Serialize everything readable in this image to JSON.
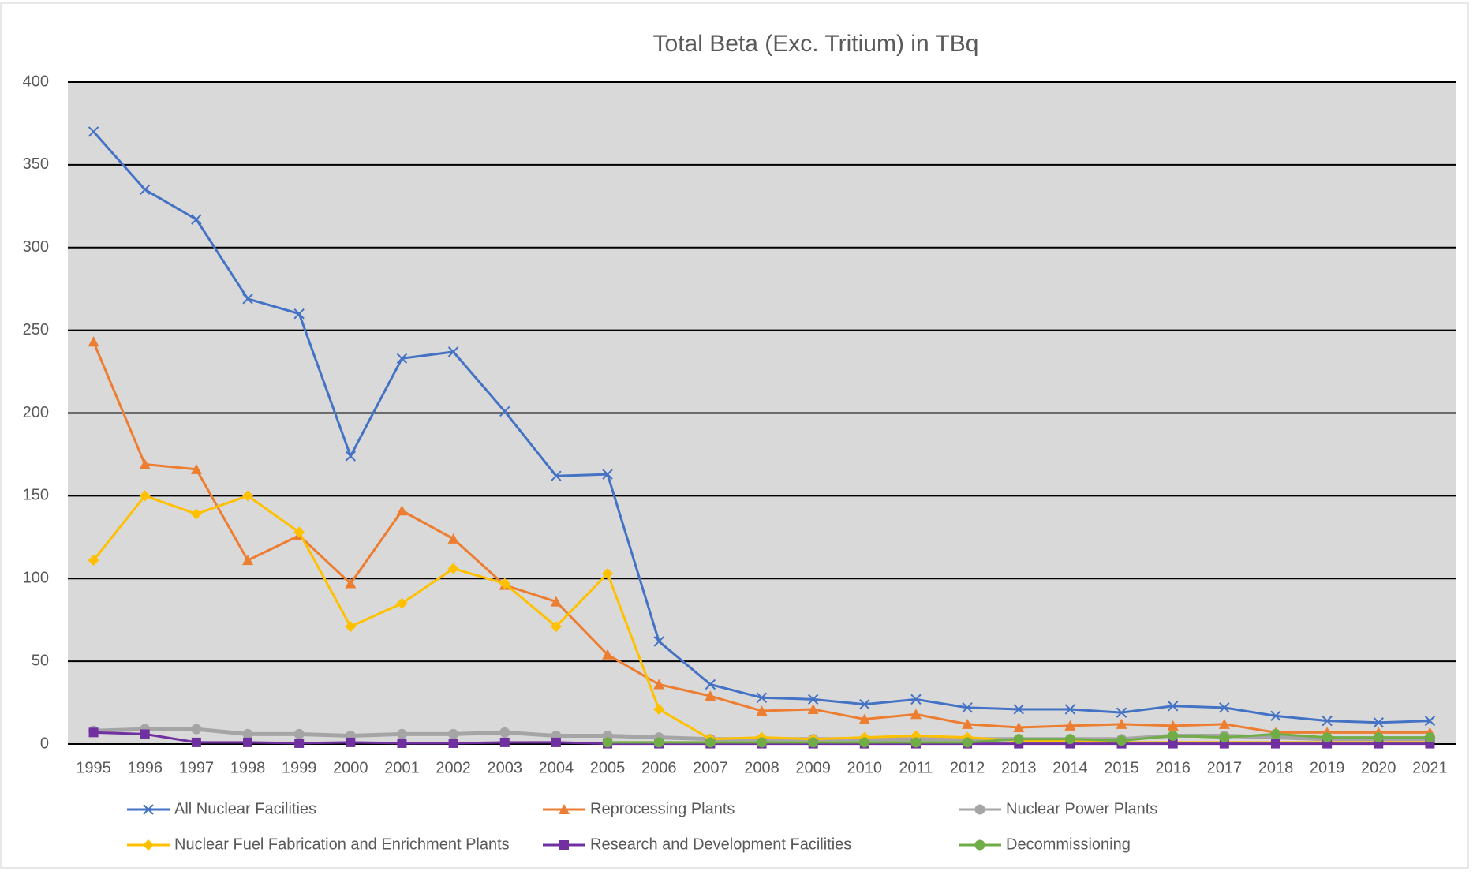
{
  "chart_data": {
    "type": "line",
    "title": "Total Beta (Exc. Tritium) in TBq",
    "categories": [
      "1995",
      "1996",
      "1997",
      "1998",
      "1999",
      "2000",
      "2001",
      "2002",
      "2003",
      "2004",
      "2005",
      "2006",
      "2007",
      "2008",
      "2009",
      "2010",
      "2011",
      "2012",
      "2013",
      "2014",
      "2015",
      "2016",
      "2017",
      "2018",
      "2019",
      "2020",
      "2021"
    ],
    "ylim": [
      0,
      400
    ],
    "yticks": [
      0,
      50,
      100,
      150,
      200,
      250,
      300,
      350,
      400
    ],
    "grid": true,
    "legend": "bottom",
    "series": [
      {
        "name": "All Nuclear Facilities",
        "color": "#4472c4",
        "marker": "x",
        "values": [
          370,
          335,
          317,
          269,
          260,
          174,
          233,
          237,
          201,
          162,
          163,
          62,
          36,
          28,
          27,
          24,
          27,
          22,
          21,
          21,
          19,
          23,
          22,
          17,
          14,
          13,
          14
        ]
      },
      {
        "name": "Reprocessing Plants",
        "color": "#ed7d31",
        "marker": "triangle",
        "values": [
          243,
          169,
          166,
          111,
          126,
          97,
          141,
          124,
          96,
          86,
          54,
          36,
          29,
          20,
          21,
          15,
          18,
          12,
          10,
          11,
          12,
          11,
          12,
          7,
          7,
          7,
          7
        ]
      },
      {
        "name": "Nuclear Power Plants",
        "color": "#a5a5a5",
        "marker": "circle",
        "values": [
          8,
          9,
          9,
          6,
          6,
          5,
          6,
          6,
          7,
          5,
          5,
          4,
          3,
          3,
          3,
          3,
          3,
          3,
          3,
          3,
          3,
          5,
          5,
          4,
          3,
          3,
          3
        ]
      },
      {
        "name": "Nuclear Fuel Fabrication and Enrichment Plants",
        "color": "#ffc000",
        "marker": "diamond",
        "values": [
          111,
          150,
          139,
          150,
          128,
          71,
          85,
          106,
          97,
          71,
          103,
          21,
          3,
          4,
          3,
          4,
          5,
          4,
          2,
          2,
          1,
          1,
          1,
          1,
          1,
          1,
          1
        ]
      },
      {
        "name": "Research and Development Facilities",
        "color": "#7030a0",
        "marker": "square",
        "values": [
          7,
          6,
          1,
          1,
          0.5,
          1,
          0.5,
          0.5,
          1,
          1,
          0.2,
          0.2,
          0.2,
          0.2,
          0.2,
          0.2,
          0.2,
          0.2,
          0.2,
          0.2,
          0.2,
          0.2,
          0.2,
          0.2,
          0.2,
          0.2,
          0.2
        ]
      },
      {
        "name": "Decommissioning",
        "color": "#70ad47",
        "marker": "circle",
        "values": [
          null,
          null,
          null,
          null,
          null,
          null,
          null,
          null,
          null,
          null,
          1,
          1,
          1,
          1,
          1,
          1,
          1,
          1,
          3,
          3,
          2,
          5,
          4,
          6,
          4,
          4,
          4
        ]
      }
    ]
  }
}
